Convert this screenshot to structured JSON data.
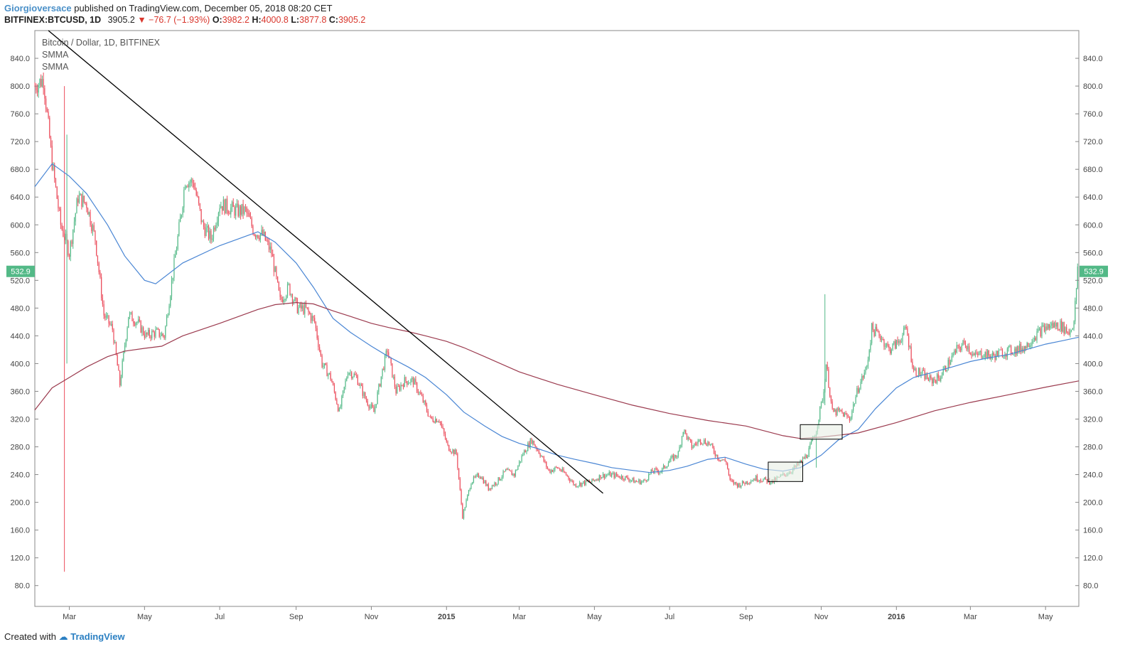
{
  "header": {
    "author": "Giorgioversace",
    "published_text": "published on TradingView.com, December 05, 2018 08:20 CET",
    "symbol": "BITFINEX:BTCUSD, 1D",
    "last": "3905.2",
    "change": "▼ −76.7 (−1.93%)",
    "o_label": "O:",
    "o_value": "3982.2",
    "h_label": "H:",
    "h_value": "4000.8",
    "l_label": "L:",
    "l_value": "3877.8",
    "c_label": "C:",
    "c_value": "3905.2"
  },
  "legend": {
    "title": "Bitcoin / Dollar, 1D, BITFINEX",
    "ind1": "SMMA",
    "ind2": "SMMA"
  },
  "footer": {
    "created_with": "Created with",
    "brand": "TradingView"
  },
  "colors": {
    "up": "#53b987",
    "down": "#eb4d5c",
    "smma_fast": "#4a86d4",
    "smma_slow": "#9b3a4e",
    "trendline": "#000000",
    "price_tag": "#53b987",
    "box_fill": "#e8eee4"
  },
  "chart_data": {
    "type": "candlestick",
    "title": "Bitcoin / Dollar, 1D, BITFINEX",
    "xlabel": "",
    "ylabel": "",
    "ylim": [
      50,
      880
    ],
    "y_ticks": [
      80,
      120,
      160,
      200,
      240,
      280,
      320,
      360,
      400,
      440,
      480,
      520,
      560,
      600,
      640,
      680,
      720,
      760,
      800,
      840
    ],
    "y_tick_labels": [
      "80.0",
      "120.0",
      "160.0",
      "200.0",
      "240.0",
      "280.0",
      "320.0",
      "360.0",
      "400.0",
      "440.0",
      "480.0",
      "520.0",
      "560.0",
      "600.0",
      "640.0",
      "680.0",
      "720.0",
      "760.0",
      "800.0",
      "840.0"
    ],
    "x_tick_labels": [
      "Mar",
      "May",
      "Jul",
      "Sep",
      "Nov",
      "2015",
      "Mar",
      "May",
      "Jul",
      "Sep",
      "Nov",
      "2016",
      "Mar",
      "May"
    ],
    "x_tick_dates": [
      "2014-03-01",
      "2014-05-01",
      "2014-07-01",
      "2014-09-01",
      "2014-11-01",
      "2015-01-01",
      "2015-03-01",
      "2015-05-01",
      "2015-07-01",
      "2015-09-01",
      "2015-11-01",
      "2016-01-01",
      "2016-03-01",
      "2016-05-01"
    ],
    "x_range": [
      "2014-02-01",
      "2016-05-28"
    ],
    "last_price_label": "532.9",
    "last_price": 532.9,
    "price_path": [
      [
        "2014-02-01",
        800
      ],
      [
        "2014-02-08",
        810
      ],
      [
        "2014-02-15",
        690
      ],
      [
        "2014-02-22",
        600
      ],
      [
        "2014-03-01",
        560
      ],
      [
        "2014-03-08",
        640
      ],
      [
        "2014-03-15",
        630
      ],
      [
        "2014-03-22",
        580
      ],
      [
        "2014-03-29",
        470
      ],
      [
        "2014-04-05",
        450
      ],
      [
        "2014-04-11",
        370
      ],
      [
        "2014-04-18",
        470
      ],
      [
        "2014-04-25",
        460
      ],
      [
        "2014-05-02",
        440
      ],
      [
        "2014-05-10",
        445
      ],
      [
        "2014-05-17",
        440
      ],
      [
        "2014-05-24",
        530
      ],
      [
        "2014-05-31",
        620
      ],
      [
        "2014-06-03",
        665
      ],
      [
        "2014-06-10",
        660
      ],
      [
        "2014-06-17",
        600
      ],
      [
        "2014-06-24",
        580
      ],
      [
        "2014-07-01",
        630
      ],
      [
        "2014-07-08",
        625
      ],
      [
        "2014-07-15",
        620
      ],
      [
        "2014-07-22",
        620
      ],
      [
        "2014-07-29",
        590
      ],
      [
        "2014-08-05",
        585
      ],
      [
        "2014-08-12",
        560
      ],
      [
        "2014-08-19",
        490
      ],
      [
        "2014-08-26",
        510
      ],
      [
        "2014-09-02",
        480
      ],
      [
        "2014-09-09",
        478
      ],
      [
        "2014-09-16",
        460
      ],
      [
        "2014-09-22",
        400
      ],
      [
        "2014-09-29",
        380
      ],
      [
        "2014-10-06",
        330
      ],
      [
        "2014-10-13",
        390
      ],
      [
        "2014-10-20",
        380
      ],
      [
        "2014-10-27",
        350
      ],
      [
        "2014-11-03",
        330
      ],
      [
        "2014-11-10",
        390
      ],
      [
        "2014-11-14",
        420
      ],
      [
        "2014-11-21",
        360
      ],
      [
        "2014-11-28",
        375
      ],
      [
        "2014-12-05",
        375
      ],
      [
        "2014-12-12",
        350
      ],
      [
        "2014-12-19",
        320
      ],
      [
        "2014-12-26",
        320
      ],
      [
        "2015-01-02",
        280
      ],
      [
        "2015-01-09",
        270
      ],
      [
        "2015-01-14",
        180
      ],
      [
        "2015-01-21",
        230
      ],
      [
        "2015-01-28",
        240
      ],
      [
        "2015-02-04",
        220
      ],
      [
        "2015-02-11",
        230
      ],
      [
        "2015-02-18",
        245
      ],
      [
        "2015-02-25",
        240
      ],
      [
        "2015-03-04",
        270
      ],
      [
        "2015-03-11",
        290
      ],
      [
        "2015-03-18",
        270
      ],
      [
        "2015-03-25",
        245
      ],
      [
        "2015-04-01",
        250
      ],
      [
        "2015-04-08",
        240
      ],
      [
        "2015-04-15",
        225
      ],
      [
        "2015-04-22",
        228
      ],
      [
        "2015-04-29",
        230
      ],
      [
        "2015-05-06",
        238
      ],
      [
        "2015-05-13",
        240
      ],
      [
        "2015-05-20",
        238
      ],
      [
        "2015-05-27",
        235
      ],
      [
        "2015-06-03",
        230
      ],
      [
        "2015-06-10",
        230
      ],
      [
        "2015-06-17",
        245
      ],
      [
        "2015-06-24",
        245
      ],
      [
        "2015-07-01",
        260
      ],
      [
        "2015-07-08",
        270
      ],
      [
        "2015-07-12",
        305
      ],
      [
        "2015-07-19",
        280
      ],
      [
        "2015-07-26",
        290
      ],
      [
        "2015-08-02",
        285
      ],
      [
        "2015-08-09",
        265
      ],
      [
        "2015-08-16",
        258
      ],
      [
        "2015-08-19",
        230
      ],
      [
        "2015-08-26",
        225
      ],
      [
        "2015-09-02",
        230
      ],
      [
        "2015-09-09",
        235
      ],
      [
        "2015-09-16",
        232
      ],
      [
        "2015-09-23",
        230
      ],
      [
        "2015-09-30",
        238
      ],
      [
        "2015-10-07",
        245
      ],
      [
        "2015-10-14",
        255
      ],
      [
        "2015-10-21",
        270
      ],
      [
        "2015-10-28",
        305
      ],
      [
        "2015-11-03",
        360
      ],
      [
        "2015-11-05",
        400
      ],
      [
        "2015-11-10",
        330
      ],
      [
        "2015-11-17",
        330
      ],
      [
        "2015-11-24",
        320
      ],
      [
        "2015-12-01",
        365
      ],
      [
        "2015-12-08",
        395
      ],
      [
        "2015-12-12",
        450
      ],
      [
        "2015-12-19",
        440
      ],
      [
        "2015-12-26",
        420
      ],
      [
        "2016-01-02",
        430
      ],
      [
        "2016-01-09",
        450
      ],
      [
        "2016-01-15",
        390
      ],
      [
        "2016-01-22",
        385
      ],
      [
        "2016-01-29",
        375
      ],
      [
        "2016-02-05",
        380
      ],
      [
        "2016-02-12",
        400
      ],
      [
        "2016-02-19",
        420
      ],
      [
        "2016-02-26",
        430
      ],
      [
        "2016-03-04",
        410
      ],
      [
        "2016-03-11",
        415
      ],
      [
        "2016-03-18",
        410
      ],
      [
        "2016-03-25",
        415
      ],
      [
        "2016-04-01",
        418
      ],
      [
        "2016-04-08",
        420
      ],
      [
        "2016-04-15",
        425
      ],
      [
        "2016-04-22",
        440
      ],
      [
        "2016-04-29",
        450
      ],
      [
        "2016-05-06",
        455
      ],
      [
        "2016-05-13",
        455
      ],
      [
        "2016-05-20",
        445
      ],
      [
        "2016-05-24",
        460
      ],
      [
        "2016-05-27",
        532.9
      ]
    ],
    "series": [
      {
        "values": [
          [
            "2014-02-01",
            655
          ],
          [
            "2014-02-15",
            688
          ],
          [
            "2014-03-01",
            670
          ],
          [
            "2014-03-15",
            645
          ],
          [
            "2014-04-01",
            600
          ],
          [
            "2014-04-15",
            555
          ],
          [
            "2014-05-01",
            520
          ],
          [
            "2014-05-10",
            515
          ],
          [
            "2014-06-01",
            545
          ],
          [
            "2014-07-01",
            570
          ],
          [
            "2014-08-01",
            590
          ],
          [
            "2014-08-15",
            575
          ],
          [
            "2014-09-01",
            545
          ],
          [
            "2014-09-15",
            510
          ],
          [
            "2014-10-01",
            465
          ],
          [
            "2014-10-15",
            445
          ],
          [
            "2014-11-01",
            425
          ],
          [
            "2014-11-15",
            410
          ],
          [
            "2014-12-01",
            395
          ],
          [
            "2014-12-15",
            380
          ],
          [
            "2015-01-01",
            355
          ],
          [
            "2015-01-15",
            330
          ],
          [
            "2015-02-01",
            310
          ],
          [
            "2015-02-15",
            295
          ],
          [
            "2015-03-01",
            285
          ],
          [
            "2015-03-15",
            278
          ],
          [
            "2015-04-01",
            268
          ],
          [
            "2015-04-15",
            262
          ],
          [
            "2015-05-01",
            256
          ],
          [
            "2015-05-15",
            250
          ],
          [
            "2015-06-01",
            246
          ],
          [
            "2015-06-15",
            243
          ],
          [
            "2015-07-01",
            246
          ],
          [
            "2015-07-15",
            252
          ],
          [
            "2015-08-01",
            262
          ],
          [
            "2015-08-15",
            265
          ],
          [
            "2015-09-01",
            255
          ],
          [
            "2015-09-15",
            248
          ],
          [
            "2015-10-01",
            245
          ],
          [
            "2015-10-15",
            250
          ],
          [
            "2015-11-01",
            268
          ],
          [
            "2015-11-15",
            290
          ],
          [
            "2015-12-01",
            305
          ],
          [
            "2015-12-15",
            335
          ],
          [
            "2016-01-01",
            365
          ],
          [
            "2016-01-15",
            380
          ],
          [
            "2016-02-01",
            388
          ],
          [
            "2016-02-15",
            395
          ],
          [
            "2016-03-01",
            403
          ],
          [
            "2016-03-15",
            408
          ],
          [
            "2016-04-01",
            413
          ],
          [
            "2016-04-15",
            420
          ],
          [
            "2016-05-01",
            428
          ],
          [
            "2016-05-15",
            433
          ],
          [
            "2016-05-28",
            438
          ]
        ]
      },
      {
        "values": [
          [
            "2014-02-01",
            333
          ],
          [
            "2014-02-15",
            365
          ],
          [
            "2014-03-01",
            380
          ],
          [
            "2014-03-15",
            395
          ],
          [
            "2014-04-01",
            410
          ],
          [
            "2014-04-15",
            418
          ],
          [
            "2014-05-01",
            422
          ],
          [
            "2014-05-15",
            425
          ],
          [
            "2014-06-01",
            440
          ],
          [
            "2014-07-01",
            458
          ],
          [
            "2014-08-01",
            478
          ],
          [
            "2014-08-15",
            485
          ],
          [
            "2014-09-01",
            488
          ],
          [
            "2014-09-15",
            486
          ],
          [
            "2014-10-01",
            476
          ],
          [
            "2014-10-15",
            468
          ],
          [
            "2014-11-01",
            458
          ],
          [
            "2014-11-15",
            452
          ],
          [
            "2014-12-01",
            446
          ],
          [
            "2014-12-15",
            440
          ],
          [
            "2015-01-01",
            432
          ],
          [
            "2015-01-15",
            423
          ],
          [
            "2015-02-01",
            410
          ],
          [
            "2015-03-01",
            388
          ],
          [
            "2015-04-01",
            370
          ],
          [
            "2015-05-01",
            355
          ],
          [
            "2015-06-01",
            340
          ],
          [
            "2015-07-01",
            328
          ],
          [
            "2015-08-01",
            318
          ],
          [
            "2015-09-01",
            310
          ],
          [
            "2015-10-01",
            296
          ],
          [
            "2015-10-15",
            292
          ],
          [
            "2015-11-01",
            294
          ],
          [
            "2015-12-01",
            300
          ],
          [
            "2016-01-01",
            315
          ],
          [
            "2016-02-01",
            332
          ],
          [
            "2016-03-01",
            344
          ],
          [
            "2016-04-01",
            355
          ],
          [
            "2016-05-01",
            366
          ],
          [
            "2016-05-28",
            375
          ]
        ]
      }
    ],
    "annotations": [
      {
        "type": "trendline",
        "from": [
          "2014-02-12",
          880
        ],
        "to": [
          "2015-05-08",
          213
        ]
      },
      {
        "type": "rectangle",
        "from": [
          "2015-09-19",
          230
        ],
        "to": [
          "2015-10-17",
          258
        ]
      },
      {
        "type": "rectangle",
        "from": [
          "2015-10-15",
          291
        ],
        "to": [
          "2015-11-18",
          312
        ]
      }
    ]
  }
}
